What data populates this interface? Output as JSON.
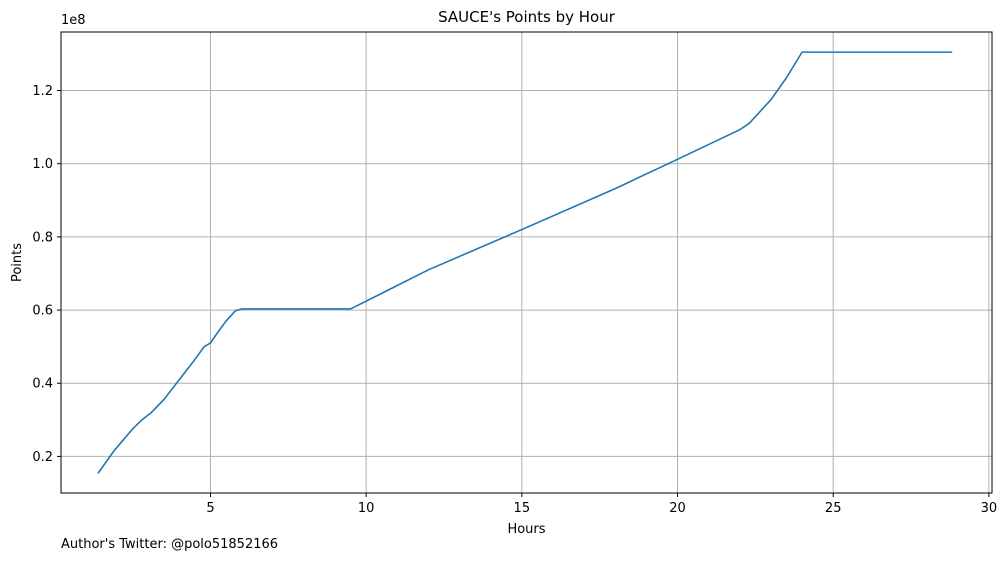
{
  "chart_data": {
    "type": "line",
    "title": "SAUCE's Points by Hour",
    "xlabel": "Hours",
    "ylabel": "Points",
    "y_scale_label": "1e8",
    "xlim": [
      0.2,
      30.1
    ],
    "ylim": [
      0.1,
      1.36
    ],
    "grid": true,
    "x_ticks": [
      5,
      10,
      15,
      20,
      25,
      30
    ],
    "x_tick_labels": [
      "5",
      "10",
      "15",
      "20",
      "25",
      "30"
    ],
    "y_ticks": [
      0.2,
      0.4,
      0.6,
      0.8,
      1.0,
      1.2
    ],
    "y_tick_labels": [
      "0.2",
      "0.4",
      "0.6",
      "0.8",
      "1.0",
      "1.2"
    ],
    "series": [
      {
        "color": "#1f77b4",
        "x": [
          1.4,
          1.9,
          2.2,
          2.5,
          2.8,
          3.1,
          3.5,
          4.0,
          4.5,
          4.8,
          5.0,
          5.2,
          5.5,
          5.8,
          6.0,
          7.0,
          8.0,
          9.0,
          9.5,
          12.0,
          15.0,
          18.0,
          20.0,
          22.0,
          22.3,
          23.0,
          23.5,
          24.0,
          25.0,
          26.0,
          27.0,
          28.0,
          28.8
        ],
        "y": [
          0.155,
          0.215,
          0.245,
          0.275,
          0.3,
          0.32,
          0.355,
          0.41,
          0.465,
          0.5,
          0.51,
          0.535,
          0.57,
          0.598,
          0.603,
          0.603,
          0.603,
          0.603,
          0.603,
          0.71,
          0.82,
          0.932,
          1.012,
          1.093,
          1.11,
          1.175,
          1.235,
          1.305,
          1.305,
          1.305,
          1.305,
          1.305,
          1.305
        ]
      }
    ]
  },
  "footer": {
    "note": "Author's Twitter: @polo51852166"
  }
}
